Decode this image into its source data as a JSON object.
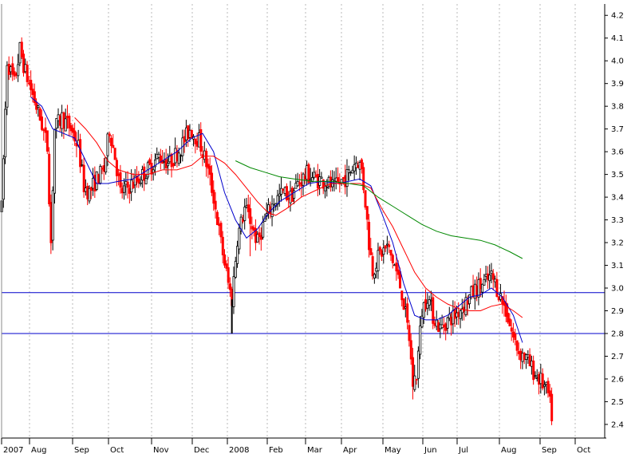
{
  "chart_data": {
    "type": "candlestick",
    "y_axis": {
      "ticks": [
        "2.4",
        "2.5",
        "2.6",
        "2.7",
        "2.8",
        "2.9",
        "3.0",
        "3.1",
        "3.2",
        "3.3",
        "3.4",
        "3.5",
        "3.6",
        "3.7",
        "3.8",
        "3.9",
        "4.0",
        "4.1",
        "4.2"
      ],
      "ylim": [
        2.34,
        4.25
      ],
      "side": "right"
    },
    "x_axis": {
      "labels": [
        "2007",
        "Aug",
        "Sep",
        "Oct",
        "Nov",
        "Dec",
        "2008",
        "Feb",
        "Mar",
        "Apr",
        "May",
        "Jun",
        "Jul",
        "Aug",
        "Sep",
        "Oct"
      ],
      "days": 330
    },
    "grid": true,
    "horizontal_lines": [
      {
        "value": 2.98,
        "color": "#0000cc"
      },
      {
        "value": 2.8,
        "color": "#0000cc"
      }
    ],
    "candle_colors": {
      "up": "#000000",
      "down": "#ff0000"
    },
    "price_path": [
      [
        0,
        3.35
      ],
      [
        3,
        4.0
      ],
      [
        7,
        3.9
      ],
      [
        10,
        4.05
      ],
      [
        13,
        3.95
      ],
      [
        17,
        3.85
      ],
      [
        22,
        3.72
      ],
      [
        25,
        3.62
      ],
      [
        27,
        3.2
      ],
      [
        29,
        3.7
      ],
      [
        33,
        3.75
      ],
      [
        38,
        3.7
      ],
      [
        42,
        3.62
      ],
      [
        45,
        3.45
      ],
      [
        48,
        3.42
      ],
      [
        52,
        3.48
      ],
      [
        56,
        3.52
      ],
      [
        59,
        3.7
      ],
      [
        62,
        3.58
      ],
      [
        65,
        3.42
      ],
      [
        70,
        3.45
      ],
      [
        75,
        3.48
      ],
      [
        80,
        3.52
      ],
      [
        86,
        3.58
      ],
      [
        92,
        3.55
      ],
      [
        98,
        3.62
      ],
      [
        103,
        3.7
      ],
      [
        108,
        3.65
      ],
      [
        112,
        3.55
      ],
      [
        116,
        3.4
      ],
      [
        120,
        3.2
      ],
      [
        124,
        3.02
      ],
      [
        126,
        2.95
      ],
      [
        129,
        3.22
      ],
      [
        133,
        3.35
      ],
      [
        136,
        3.3
      ],
      [
        140,
        3.2
      ],
      [
        144,
        3.3
      ],
      [
        149,
        3.38
      ],
      [
        154,
        3.42
      ],
      [
        158,
        3.4
      ],
      [
        162,
        3.46
      ],
      [
        167,
        3.5
      ],
      [
        172,
        3.48
      ],
      [
        177,
        3.47
      ],
      [
        182,
        3.44
      ],
      [
        186,
        3.47
      ],
      [
        190,
        3.5
      ],
      [
        193,
        3.55
      ],
      [
        195,
        3.56
      ],
      [
        197,
        3.52
      ],
      [
        199,
        3.38
      ],
      [
        201,
        3.2
      ],
      [
        203,
        3.08
      ],
      [
        207,
        3.15
      ],
      [
        211,
        3.18
      ],
      [
        215,
        3.1
      ],
      [
        219,
        2.98
      ],
      [
        223,
        2.78
      ],
      [
        225,
        2.58
      ],
      [
        227,
        2.62
      ],
      [
        230,
        2.9
      ],
      [
        233,
        2.97
      ],
      [
        236,
        2.88
      ],
      [
        240,
        2.82
      ],
      [
        244,
        2.86
      ],
      [
        248,
        2.88
      ],
      [
        252,
        2.92
      ],
      [
        256,
        2.96
      ],
      [
        260,
        3.0
      ],
      [
        264,
        3.02
      ],
      [
        268,
        3.05
      ],
      [
        270,
        3.02
      ],
      [
        272,
        2.98
      ],
      [
        276,
        2.9
      ],
      [
        280,
        2.78
      ],
      [
        283,
        2.72
      ],
      [
        286,
        2.7
      ],
      [
        289,
        2.66
      ],
      [
        292,
        2.62
      ],
      [
        296,
        2.58
      ],
      [
        299,
        2.53
      ],
      [
        301,
        2.44
      ]
    ],
    "series": [
      {
        "color": "#0000cc",
        "values": [
          [
            16,
            3.84
          ],
          [
            22,
            3.8
          ],
          [
            28,
            3.7
          ],
          [
            34,
            3.68
          ],
          [
            40,
            3.66
          ],
          [
            46,
            3.56
          ],
          [
            52,
            3.46
          ],
          [
            58,
            3.46
          ],
          [
            64,
            3.47
          ],
          [
            72,
            3.48
          ],
          [
            80,
            3.52
          ],
          [
            88,
            3.56
          ],
          [
            96,
            3.6
          ],
          [
            104,
            3.66
          ],
          [
            110,
            3.68
          ],
          [
            116,
            3.6
          ],
          [
            122,
            3.42
          ],
          [
            128,
            3.3
          ],
          [
            134,
            3.22
          ],
          [
            140,
            3.26
          ],
          [
            146,
            3.33
          ],
          [
            152,
            3.38
          ],
          [
            160,
            3.42
          ],
          [
            168,
            3.46
          ],
          [
            176,
            3.47
          ],
          [
            184,
            3.46
          ],
          [
            190,
            3.47
          ],
          [
            196,
            3.48
          ],
          [
            202,
            3.45
          ],
          [
            208,
            3.33
          ],
          [
            214,
            3.2
          ],
          [
            220,
            3.02
          ],
          [
            226,
            2.88
          ],
          [
            232,
            2.86
          ],
          [
            238,
            2.86
          ],
          [
            244,
            2.88
          ],
          [
            250,
            2.92
          ],
          [
            256,
            2.96
          ],
          [
            262,
            2.97
          ],
          [
            268,
            3.0
          ],
          [
            274,
            2.96
          ],
          [
            280,
            2.88
          ],
          [
            285,
            2.76
          ]
        ]
      },
      {
        "color": "#ff0000",
        "values": [
          [
            40,
            3.75
          ],
          [
            46,
            3.7
          ],
          [
            52,
            3.64
          ],
          [
            58,
            3.56
          ],
          [
            64,
            3.52
          ],
          [
            72,
            3.5
          ],
          [
            80,
            3.5
          ],
          [
            88,
            3.52
          ],
          [
            96,
            3.52
          ],
          [
            104,
            3.54
          ],
          [
            110,
            3.58
          ],
          [
            116,
            3.58
          ],
          [
            122,
            3.55
          ],
          [
            128,
            3.5
          ],
          [
            134,
            3.44
          ],
          [
            140,
            3.38
          ],
          [
            146,
            3.33
          ],
          [
            150,
            3.32
          ],
          [
            156,
            3.35
          ],
          [
            164,
            3.4
          ],
          [
            172,
            3.43
          ],
          [
            180,
            3.46
          ],
          [
            188,
            3.46
          ],
          [
            196,
            3.46
          ],
          [
            202,
            3.44
          ],
          [
            208,
            3.35
          ],
          [
            214,
            3.27
          ],
          [
            220,
            3.17
          ],
          [
            226,
            3.07
          ],
          [
            232,
            3.0
          ],
          [
            238,
            2.96
          ],
          [
            244,
            2.93
          ],
          [
            250,
            2.91
          ],
          [
            256,
            2.9
          ],
          [
            262,
            2.9
          ],
          [
            268,
            2.92
          ],
          [
            274,
            2.93
          ],
          [
            280,
            2.9
          ],
          [
            285,
            2.87
          ]
        ]
      },
      {
        "color": "#008800",
        "values": [
          [
            128,
            3.56
          ],
          [
            136,
            3.53
          ],
          [
            144,
            3.51
          ],
          [
            152,
            3.49
          ],
          [
            160,
            3.48
          ],
          [
            170,
            3.47
          ],
          [
            180,
            3.47
          ],
          [
            190,
            3.46
          ],
          [
            198,
            3.45
          ],
          [
            206,
            3.4
          ],
          [
            214,
            3.36
          ],
          [
            222,
            3.32
          ],
          [
            230,
            3.28
          ],
          [
            238,
            3.25
          ],
          [
            246,
            3.23
          ],
          [
            254,
            3.22
          ],
          [
            262,
            3.21
          ],
          [
            270,
            3.19
          ],
          [
            278,
            3.16
          ],
          [
            285,
            3.13
          ]
        ]
      }
    ]
  }
}
